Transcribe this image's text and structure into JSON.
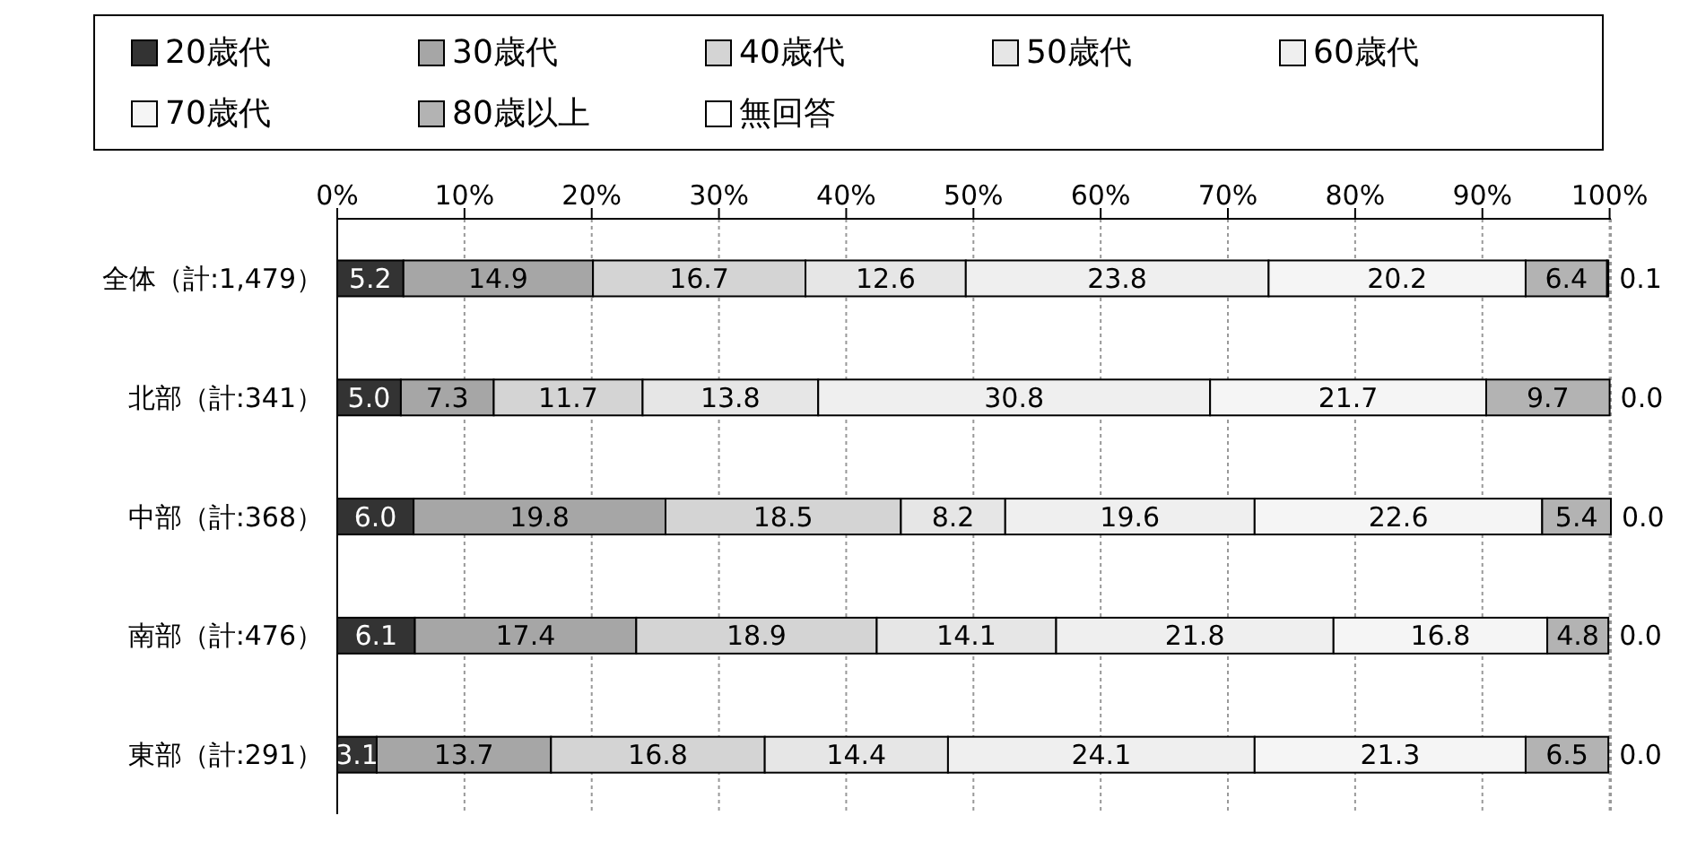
{
  "chart_data": {
    "type": "bar",
    "orientation": "horizontal",
    "stacked": true,
    "categories": [
      "全体（計:1,479）",
      "北部（計:341）",
      "中部（計:368）",
      "南部（計:476）",
      "東部（計:291）"
    ],
    "series": [
      {
        "name": "20歳代",
        "color": "#333333",
        "values": [
          5.2,
          5.0,
          6.0,
          6.1,
          3.1
        ],
        "value_labels": [
          "5.2",
          "5.0",
          "6.0",
          "6.1",
          "3.1"
        ]
      },
      {
        "name": "30歳代",
        "color": "#a6a6a6",
        "values": [
          14.9,
          7.3,
          19.8,
          17.4,
          13.7
        ],
        "value_labels": [
          "14.9",
          "7.3",
          "19.8",
          "17.4",
          "13.7"
        ]
      },
      {
        "name": "40歳代",
        "color": "#d4d4d4",
        "values": [
          16.7,
          11.7,
          18.5,
          18.9,
          16.8
        ],
        "value_labels": [
          "16.7",
          "11.7",
          "18.5",
          "18.9",
          "16.8"
        ]
      },
      {
        "name": "50歳代",
        "color": "#e6e6e6",
        "values": [
          12.6,
          13.8,
          8.2,
          14.1,
          14.4
        ],
        "value_labels": [
          "12.6",
          "13.8",
          "8.2",
          "14.1",
          "14.4"
        ]
      },
      {
        "name": "60歳代",
        "color": "#efefef",
        "values": [
          23.8,
          30.8,
          19.6,
          21.8,
          24.1
        ],
        "value_labels": [
          "23.8",
          "30.8",
          "19.6",
          "21.8",
          "24.1"
        ]
      },
      {
        "name": "70歳代",
        "color": "#f5f5f5",
        "values": [
          20.2,
          21.7,
          22.6,
          16.8,
          21.3
        ],
        "value_labels": [
          "20.2",
          "21.7",
          "22.6",
          "16.8",
          "21.3"
        ]
      },
      {
        "name": "80歳以上",
        "color": "#b3b3b3",
        "values": [
          6.4,
          9.7,
          5.4,
          4.8,
          6.5
        ],
        "value_labels": [
          "6.4",
          "9.7",
          "5.4",
          "4.8",
          "6.5"
        ]
      },
      {
        "name": "無回答",
        "color": "#ffffff",
        "values": [
          0.1,
          0.0,
          0.0,
          0.0,
          0.0
        ],
        "value_labels": [
          "0.1",
          "0.0",
          "0.0",
          "0.0",
          "0.0"
        ]
      }
    ],
    "xlim": [
      0,
      100
    ],
    "xticks": [
      {
        "value": 0,
        "label": "0%"
      },
      {
        "value": 10,
        "label": "10%"
      },
      {
        "value": 20,
        "label": "20%"
      },
      {
        "value": 30,
        "label": "30%"
      },
      {
        "value": 40,
        "label": "40%"
      },
      {
        "value": 50,
        "label": "50%"
      },
      {
        "value": 60,
        "label": "60%"
      },
      {
        "value": 70,
        "label": "70%"
      },
      {
        "value": 80,
        "label": "80%"
      },
      {
        "value": 90,
        "label": "90%"
      },
      {
        "value": 100,
        "label": "100%"
      }
    ],
    "grid": "x",
    "legend": "top"
  }
}
